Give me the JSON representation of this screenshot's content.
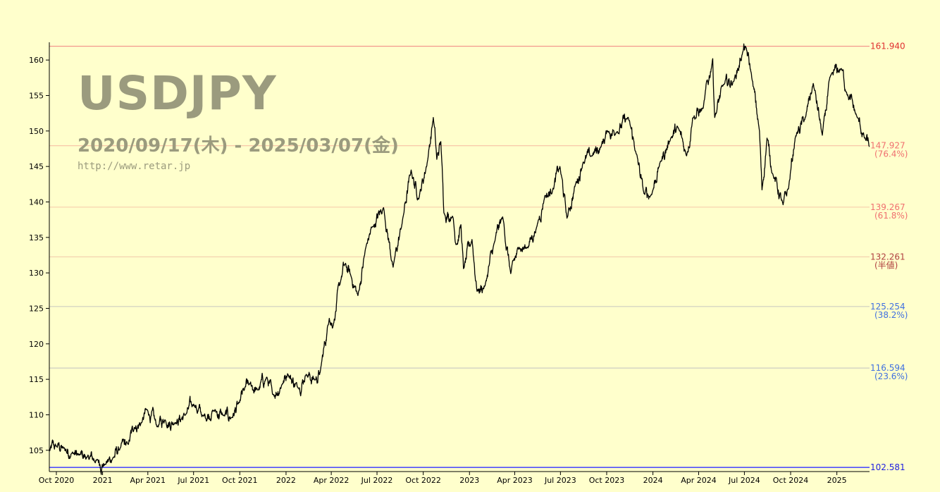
{
  "watermark": {
    "symbol": "USDJPY",
    "range": "2020/09/17(木) - 2025/03/07(金)",
    "url": "http://www.retar.jp"
  },
  "chart_data": {
    "type": "line",
    "ylim": [
      102.0,
      162.5
    ],
    "yticks": [
      105,
      110,
      115,
      120,
      125,
      130,
      135,
      140,
      145,
      150,
      155,
      160
    ],
    "xticks": [
      {
        "date": "2020-10-01",
        "label": "Oct 2020"
      },
      {
        "date": "2021-01-01",
        "label": "2021"
      },
      {
        "date": "2021-04-01",
        "label": "Apr 2021"
      },
      {
        "date": "2021-07-01",
        "label": "Jul 2021"
      },
      {
        "date": "2021-10-01",
        "label": "Oct 2021"
      },
      {
        "date": "2022-01-01",
        "label": "2022"
      },
      {
        "date": "2022-04-01",
        "label": "Apr 2022"
      },
      {
        "date": "2022-07-01",
        "label": "Jul 2022"
      },
      {
        "date": "2022-10-01",
        "label": "Oct 2022"
      },
      {
        "date": "2023-01-01",
        "label": "2023"
      },
      {
        "date": "2023-04-01",
        "label": "Apr 2023"
      },
      {
        "date": "2023-07-01",
        "label": "Jul 2023"
      },
      {
        "date": "2023-10-01",
        "label": "Oct 2023"
      },
      {
        "date": "2024-01-01",
        "label": "2024"
      },
      {
        "date": "2024-04-01",
        "label": "Apr 2024"
      },
      {
        "date": "2024-07-01",
        "label": "Jul 2024"
      },
      {
        "date": "2024-10-01",
        "label": "Oct 2024"
      },
      {
        "date": "2025-01-01",
        "label": "2025"
      }
    ],
    "xrange": [
      "2020-09-17",
      "2025-03-07"
    ],
    "levels": [
      {
        "value": 161.94,
        "label": "161.940",
        "pct": "",
        "color": "#e03030",
        "line": "#f08080"
      },
      {
        "value": 147.927,
        "label": "147.927",
        "pct": "(76.4%)",
        "color": "#f07070",
        "line": "#f5b8a0"
      },
      {
        "value": 139.267,
        "label": "139.267",
        "pct": "(61.8%)",
        "color": "#f07070",
        "line": "#f5c8a8"
      },
      {
        "value": 132.261,
        "label": "132.261",
        "pct": "(半値)",
        "color": "#b04040",
        "line": "#f0c8a8"
      },
      {
        "value": 125.254,
        "label": "125.254",
        "pct": "(38.2%)",
        "color": "#4070e0",
        "line": "#c8c8c0"
      },
      {
        "value": 116.594,
        "label": "116.594",
        "pct": "(23.6%)",
        "color": "#4070e0",
        "line": "#c0c0c0"
      },
      {
        "value": 102.581,
        "label": "102.581",
        "pct": "",
        "color": "#2020e0",
        "line": "#4040ff"
      }
    ],
    "series": [
      {
        "values": [
          [
            "2020-09-17",
            104.9
          ],
          [
            "2020-10-01",
            105.6
          ],
          [
            "2020-10-15",
            105.3
          ],
          [
            "2020-11-01",
            104.6
          ],
          [
            "2020-11-15",
            104.3
          ],
          [
            "2020-12-01",
            104.0
          ],
          [
            "2020-12-20",
            103.6
          ],
          [
            "2021-01-06",
            103.0
          ],
          [
            "2021-01-20",
            103.7
          ],
          [
            "2021-02-05",
            105.3
          ],
          [
            "2021-02-20",
            105.9
          ],
          [
            "2021-03-05",
            108.2
          ],
          [
            "2021-03-20",
            108.9
          ],
          [
            "2021-03-31",
            110.7
          ],
          [
            "2021-04-20",
            108.3
          ],
          [
            "2021-05-05",
            109.3
          ],
          [
            "2021-05-25",
            108.9
          ],
          [
            "2021-06-15",
            110.0
          ],
          [
            "2021-07-01",
            111.5
          ],
          [
            "2021-07-20",
            109.8
          ],
          [
            "2021-08-10",
            110.6
          ],
          [
            "2021-08-30",
            109.9
          ],
          [
            "2021-09-15",
            109.6
          ],
          [
            "2021-09-30",
            111.7
          ],
          [
            "2021-10-10",
            113.5
          ],
          [
            "2021-10-20",
            114.3
          ],
          [
            "2021-11-05",
            113.5
          ],
          [
            "2021-11-24",
            115.3
          ],
          [
            "2021-12-05",
            112.9
          ],
          [
            "2021-12-25",
            114.4
          ],
          [
            "2022-01-04",
            115.8
          ],
          [
            "2022-01-25",
            113.8
          ],
          [
            "2022-02-10",
            115.7
          ],
          [
            "2022-02-28",
            114.9
          ],
          [
            "2022-03-10",
            116.0
          ],
          [
            "2022-03-28",
            123.6
          ],
          [
            "2022-04-05",
            122.6
          ],
          [
            "2022-04-20",
            129.0
          ],
          [
            "2022-04-28",
            131.2
          ],
          [
            "2022-05-10",
            129.6
          ],
          [
            "2022-05-24",
            126.8
          ],
          [
            "2022-06-10",
            134.0
          ],
          [
            "2022-06-22",
            136.5
          ],
          [
            "2022-07-14",
            139.2
          ],
          [
            "2022-08-02",
            130.8
          ],
          [
            "2022-08-20",
            137.0
          ],
          [
            "2022-09-07",
            144.5
          ],
          [
            "2022-09-22",
            140.4
          ],
          [
            "2022-10-10",
            146.0
          ],
          [
            "2022-10-21",
            151.9
          ],
          [
            "2022-10-28",
            146.0
          ],
          [
            "2022-11-05",
            148.5
          ],
          [
            "2022-11-11",
            138.5
          ],
          [
            "2022-11-28",
            138.0
          ],
          [
            "2022-12-05",
            134.0
          ],
          [
            "2022-12-15",
            136.8
          ],
          [
            "2022-12-20",
            130.6
          ],
          [
            "2023-01-06",
            134.7
          ],
          [
            "2023-01-16",
            127.4
          ],
          [
            "2023-02-01",
            128.2
          ],
          [
            "2023-02-20",
            134.4
          ],
          [
            "2023-03-08",
            137.9
          ],
          [
            "2023-03-24",
            129.9
          ],
          [
            "2023-04-10",
            133.6
          ],
          [
            "2023-04-25",
            133.5
          ],
          [
            "2023-05-15",
            136.5
          ],
          [
            "2023-05-31",
            140.9
          ],
          [
            "2023-06-15",
            141.5
          ],
          [
            "2023-06-30",
            145.0
          ],
          [
            "2023-07-14",
            137.7
          ],
          [
            "2023-07-31",
            142.5
          ],
          [
            "2023-08-15",
            145.6
          ],
          [
            "2023-09-01",
            146.5
          ],
          [
            "2023-09-20",
            147.8
          ],
          [
            "2023-10-03",
            150.0
          ],
          [
            "2023-10-20",
            149.8
          ],
          [
            "2023-11-13",
            151.9
          ],
          [
            "2023-11-28",
            147.0
          ],
          [
            "2023-12-14",
            141.2
          ],
          [
            "2023-12-28",
            140.9
          ],
          [
            "2024-01-15",
            145.5
          ],
          [
            "2024-02-05",
            148.9
          ],
          [
            "2024-02-20",
            150.5
          ],
          [
            "2024-03-08",
            146.5
          ],
          [
            "2024-03-20",
            151.8
          ],
          [
            "2024-04-10",
            153.2
          ],
          [
            "2024-04-29",
            160.2
          ],
          [
            "2024-05-03",
            151.9
          ],
          [
            "2024-05-20",
            156.5
          ],
          [
            "2024-06-10",
            157.0
          ],
          [
            "2024-06-28",
            161.2
          ],
          [
            "2024-07-03",
            161.9
          ],
          [
            "2024-07-15",
            158.0
          ],
          [
            "2024-07-31",
            150.0
          ],
          [
            "2024-08-05",
            141.7
          ],
          [
            "2024-08-15",
            149.0
          ],
          [
            "2024-08-26",
            144.0
          ],
          [
            "2024-09-16",
            139.6
          ],
          [
            "2024-09-27",
            142.0
          ],
          [
            "2024-10-10",
            149.0
          ],
          [
            "2024-10-31",
            152.0
          ],
          [
            "2024-11-15",
            156.7
          ],
          [
            "2024-12-03",
            149.4
          ],
          [
            "2024-12-20",
            157.9
          ],
          [
            "2025-01-10",
            158.8
          ],
          [
            "2025-01-20",
            155.5
          ],
          [
            "2025-02-10",
            152.0
          ],
          [
            "2025-02-25",
            149.0
          ],
          [
            "2025-03-07",
            147.8
          ]
        ]
      }
    ]
  }
}
